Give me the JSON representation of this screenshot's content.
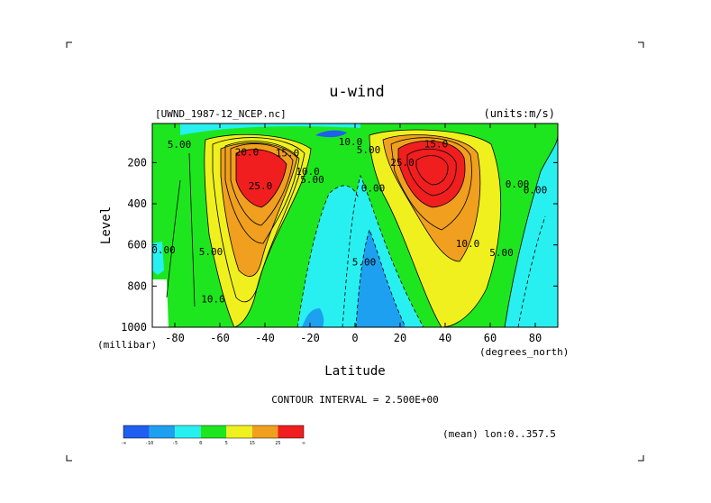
{
  "chart_data": {
    "type": "heatmap",
    "title": "u-wind",
    "file_label": "[UWND_1987-12_NCEP.nc]",
    "units_label": "(units:m/s)",
    "xlabel": "Latitude",
    "x_unit_label": "(degrees_north)",
    "ylabel": "Level",
    "y_unit_label": "(millibar)",
    "xlim": [
      -90,
      90
    ],
    "ylim": [
      1000,
      10
    ],
    "x_ticks": [
      "-80",
      "-60",
      "-40",
      "-20",
      "0",
      "20",
      "40",
      "60",
      "80"
    ],
    "x_tick_values": [
      -80,
      -60,
      -40,
      -20,
      0,
      20,
      40,
      60,
      80
    ],
    "y_ticks": [
      "200",
      "400",
      "600",
      "800",
      "1000"
    ],
    "y_tick_values": [
      200,
      400,
      600,
      800,
      1000
    ],
    "contour_interval_text": "CONTOUR INTERVAL = 2.500E+00",
    "mean_text": "(mean) lon:0..357.5",
    "contour_labels": [
      {
        "text": "20.0",
        "lat": -48,
        "lev": 165
      },
      {
        "text": "15.0",
        "lat": -30,
        "lev": 170
      },
      {
        "text": "5.00",
        "lat": -78,
        "lev": 128
      },
      {
        "text": "10.0",
        "lat": -2,
        "lev": 115
      },
      {
        "text": "15.0",
        "lat": 36,
        "lev": 125
      },
      {
        "text": "25.0",
        "lat": 21,
        "lev": 215
      },
      {
        "text": "5.00",
        "lat": 6,
        "lev": 155
      },
      {
        "text": "10.0",
        "lat": -21,
        "lev": 260
      },
      {
        "text": "5.00",
        "lat": -19,
        "lev": 300
      },
      {
        "text": "25.0",
        "lat": -42,
        "lev": 330
      },
      {
        "text": "0.00",
        "lat": 8,
        "lev": 340
      },
      {
        "text": "0.00",
        "lat": 72,
        "lev": 320
      },
      {
        "text": "0.00",
        "lat": 80,
        "lev": 350
      },
      {
        "text": "0.00",
        "lat": -85,
        "lev": 640
      },
      {
        "text": "5.00",
        "lat": -64,
        "lev": 650
      },
      {
        "text": "5.00",
        "lat": 4,
        "lev": 700
      },
      {
        "text": "10.0",
        "lat": 50,
        "lev": 610
      },
      {
        "text": "5.00",
        "lat": 65,
        "lev": 655
      },
      {
        "text": "10.0",
        "lat": -63,
        "lev": 880
      }
    ],
    "colorbar": {
      "colors": [
        "#1e5ff0",
        "#1ea0f0",
        "#28f0f0",
        "#1ee61e",
        "#f0f01e",
        "#f0a01e",
        "#f01e1e"
      ],
      "labels": [
        "-∞",
        "-10",
        "-5",
        "0",
        "5",
        "15",
        "25",
        "∞"
      ]
    }
  }
}
